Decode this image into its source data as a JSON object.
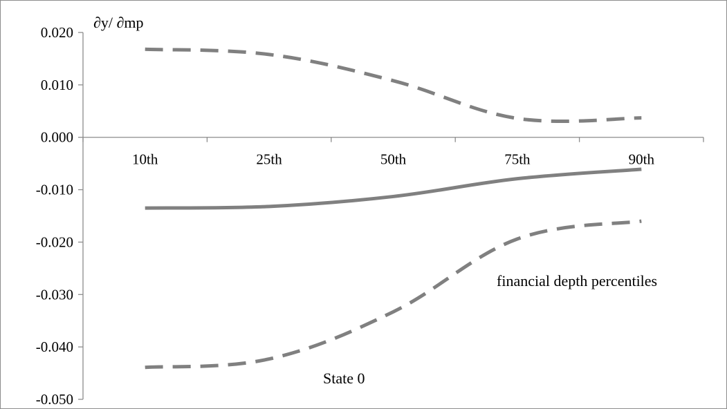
{
  "chart_data": {
    "type": "line",
    "title": "",
    "ylabel": "∂y/ ∂mp",
    "xlabel": "financial depth percentiles",
    "annotation": "State 0",
    "categories": [
      "10th",
      "25th",
      "50th",
      "75th",
      "90th"
    ],
    "ylim": [
      -0.05,
      0.02
    ],
    "yticks": [
      "0.020",
      "0.010",
      "0.000",
      "-0.010",
      "-0.020",
      "-0.030",
      "-0.040",
      "-0.050"
    ],
    "yticks_values": [
      0.02,
      0.01,
      0.0,
      -0.01,
      -0.02,
      -0.03,
      -0.04,
      -0.05
    ],
    "grid": false,
    "series": [
      {
        "role": "upper",
        "style": "dashed",
        "values": [
          0.0168,
          0.0158,
          0.0108,
          0.0036,
          0.0037
        ]
      },
      {
        "role": "estimate",
        "style": "solid",
        "values": [
          -0.0135,
          -0.0132,
          -0.0113,
          -0.0079,
          -0.0061
        ]
      },
      {
        "role": "lower",
        "style": "dashed",
        "values": [
          -0.0439,
          -0.0423,
          -0.0333,
          -0.0194,
          -0.016
        ]
      }
    ],
    "line_color": "#808080"
  }
}
